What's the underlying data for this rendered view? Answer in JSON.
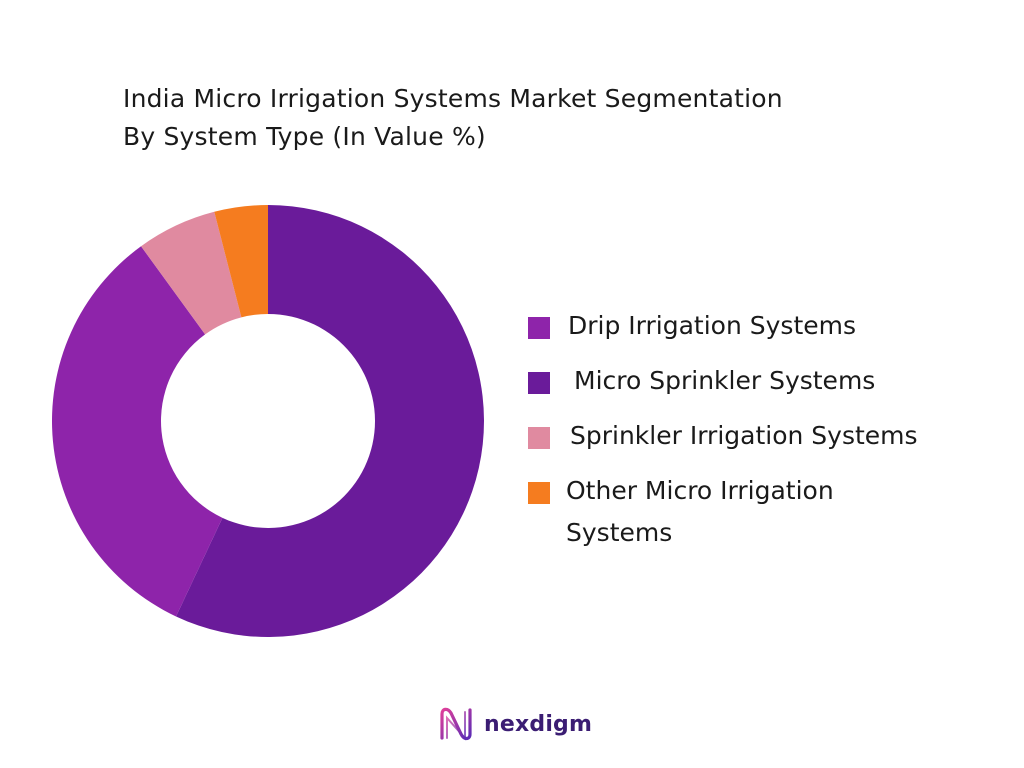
{
  "chart_data": {
    "type": "pie",
    "title": "India Micro Irrigation Systems Market Segmentation",
    "subtitle": "By System Type (In Value %)",
    "legend_placement": "right",
    "categories": [
      "Drip Irrigation Systems",
      "Micro Sprinkler Systems",
      "Sprinkler Irrigation Systems",
      "Other Micro Irrigation Systems"
    ],
    "values": [
      33,
      57,
      6,
      4
    ],
    "colors": [
      "#8e24aa",
      "#6a1b9a",
      "#e08aa0",
      "#f57c1f"
    ],
    "donut": true
  },
  "brand": {
    "name": "nexdigm",
    "accent": "#3b1d73"
  }
}
